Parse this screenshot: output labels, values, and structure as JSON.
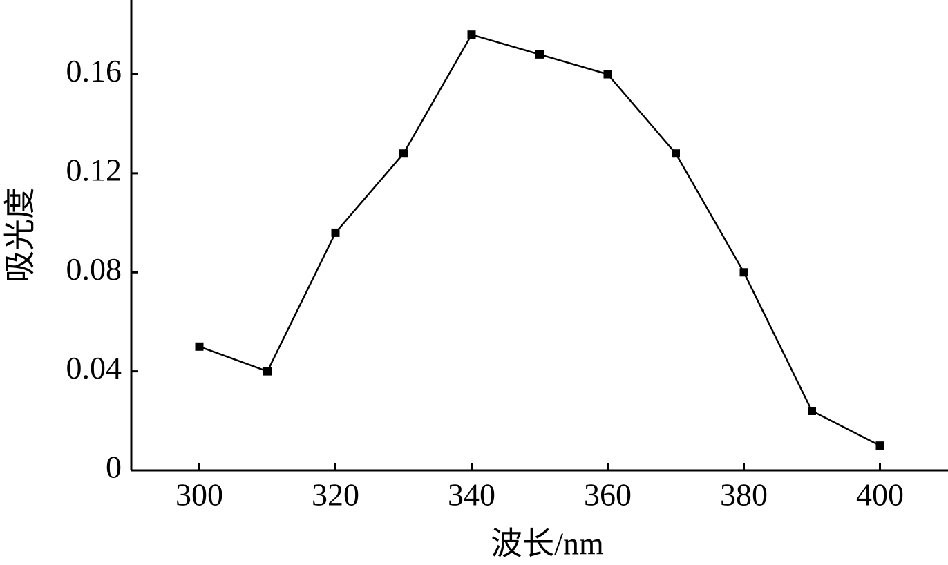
{
  "chart_data": {
    "type": "line",
    "x_label": "波长/nm",
    "y_label": "吸光度",
    "x": [
      300,
      310,
      320,
      330,
      340,
      350,
      360,
      370,
      380,
      390,
      400
    ],
    "series": [
      {
        "color": "#000000",
        "values": [
          0.05,
          0.04,
          0.096,
          0.128,
          0.176,
          0.168,
          0.16,
          0.128,
          0.08,
          0.024,
          0.01
        ]
      }
    ],
    "xlim": [
      290,
      410
    ],
    "xticks": [
      300,
      320,
      340,
      360,
      380,
      400
    ],
    "ylim": [
      0,
      0.19
    ],
    "yticks": [
      0,
      0.04,
      0.08,
      0.12,
      0.16
    ]
  }
}
